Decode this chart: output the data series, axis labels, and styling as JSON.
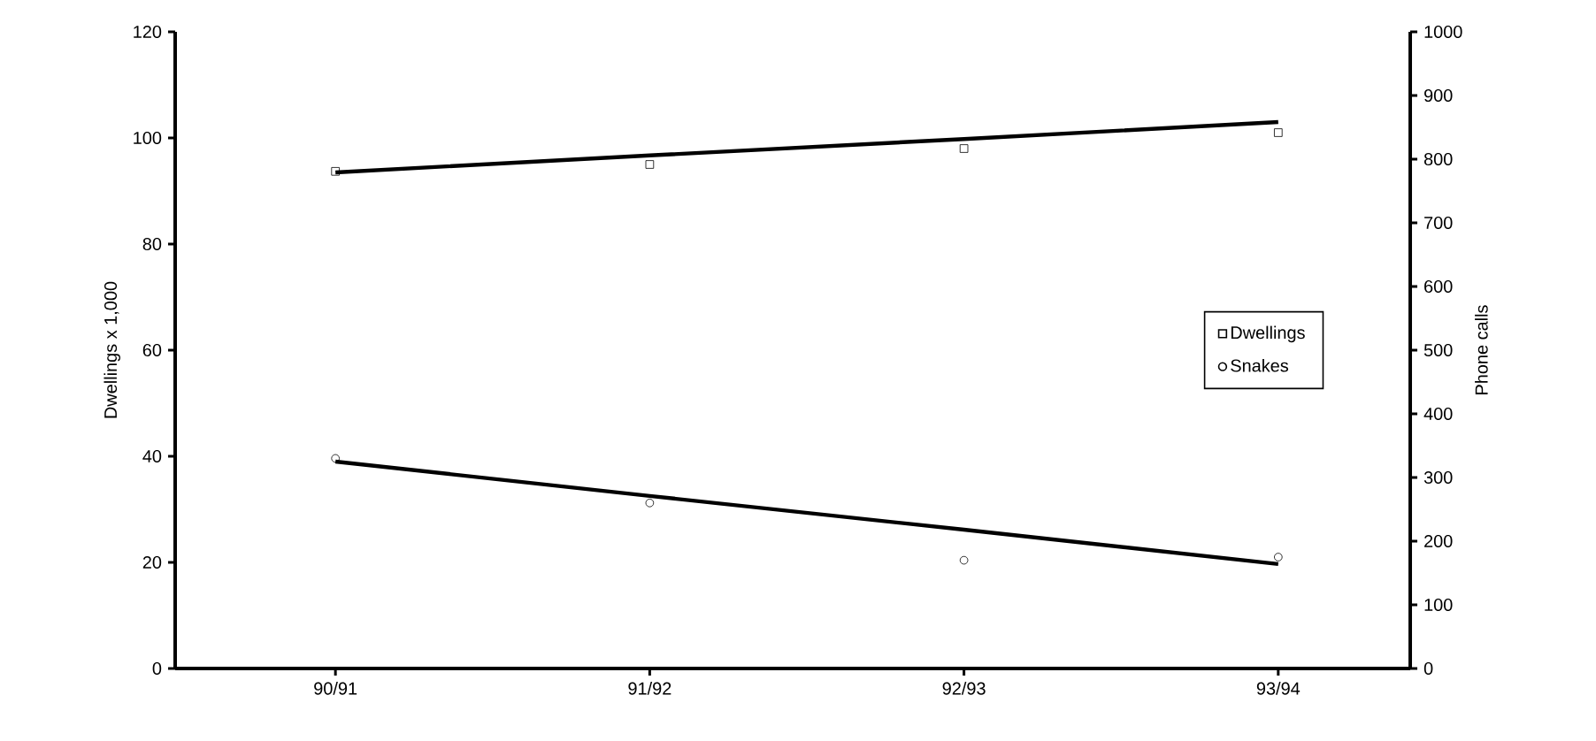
{
  "chart_data": {
    "type": "scatter",
    "categories": [
      "90/91",
      "91/92",
      "92/93",
      "93/94"
    ],
    "ylabel": "Dwellings x 1,000",
    "y2label": "Phone calls",
    "ylim": [
      0,
      120
    ],
    "yticks": [
      0,
      20,
      40,
      60,
      80,
      100,
      120
    ],
    "y2lim": [
      0,
      1000
    ],
    "y2ticks": [
      0,
      100,
      200,
      300,
      400,
      500,
      600,
      700,
      800,
      900,
      1000
    ],
    "legend": "right",
    "grid": false,
    "series": [
      {
        "name": "Dwellings",
        "marker": "square",
        "color": "#000000",
        "values": [
          93.7,
          95,
          98,
          101
        ]
      },
      {
        "name": "Snakes",
        "marker": "circle",
        "color": "#000000",
        "axis": "y2",
        "values": [
          330,
          260,
          170,
          175
        ]
      },
      {
        "type": "line",
        "marker": "none",
        "color": "#000000",
        "values": [
          93.5,
          96.7,
          99.8,
          103
        ]
      },
      {
        "type": "line",
        "marker": "none",
        "color": "#000000",
        "axis": "y2",
        "values": [
          325,
          271,
          218,
          164
        ]
      }
    ]
  }
}
